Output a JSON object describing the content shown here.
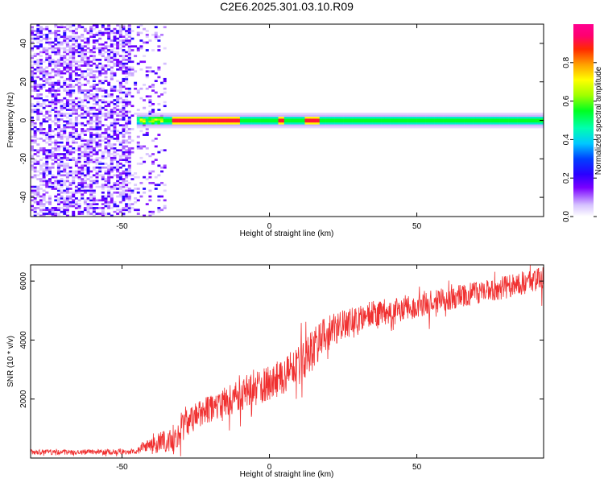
{
  "title": "C2E6.2025.301.03.10.R09",
  "chart_data": [
    {
      "type": "heatmap",
      "xlabel": "Height of straight line (km)",
      "ylabel": "Frequency (Hz)",
      "xlim": [
        -81,
        93
      ],
      "ylim": [
        -50,
        50
      ],
      "xticks": [
        -50,
        0,
        50
      ],
      "yticks": [
        -40,
        -20,
        0,
        20,
        40
      ],
      "colorbar": {
        "label": "Normalized spectral amplitude",
        "range": [
          0,
          1
        ],
        "ticks": [
          0.0,
          0.2,
          0.4,
          0.6,
          0.8
        ],
        "tick_labels": [
          "0.0",
          "0.2",
          "0.4",
          "0.6",
          "0.8"
        ],
        "colormap": "rainbow"
      },
      "features": {
        "noise_region_x": [
          -81,
          -35
        ],
        "band_center_hz": 0,
        "band_start_x": -45,
        "band_x_end": 93,
        "band_halfwidth_hz": 2,
        "peak_segments_x": [
          [
            -33,
            -10
          ],
          [
            3,
            5
          ],
          [
            12,
            17
          ]
        ]
      }
    },
    {
      "type": "line",
      "xlabel": "Height of straight line (km)",
      "ylabel": "SNR (10 * v/v)",
      "xlim": [
        -81,
        93
      ],
      "ylim": [
        0,
        6550
      ],
      "xticks": [
        -50,
        0,
        50
      ],
      "yticks": [
        2000,
        4000,
        6000
      ],
      "color": "#f03030",
      "trend": {
        "x": [
          -81,
          -60,
          -45,
          -42,
          -38,
          -33,
          -28,
          -22,
          -15,
          -8,
          -2,
          5,
          12,
          18,
          25,
          35,
          50,
          65,
          80,
          93
        ],
        "y": [
          200,
          200,
          220,
          450,
          500,
          600,
          1200,
          1600,
          1900,
          2200,
          2450,
          2800,
          3300,
          4100,
          4500,
          4900,
          5150,
          5500,
          5800,
          6100
        ]
      },
      "noise_amplitude": {
        "x": [
          -81,
          -45,
          -40,
          -30,
          -15,
          0,
          15,
          30,
          60,
          93
        ],
        "y": [
          90,
          90,
          350,
          450,
          500,
          600,
          700,
          450,
          400,
          400
        ]
      }
    }
  ]
}
